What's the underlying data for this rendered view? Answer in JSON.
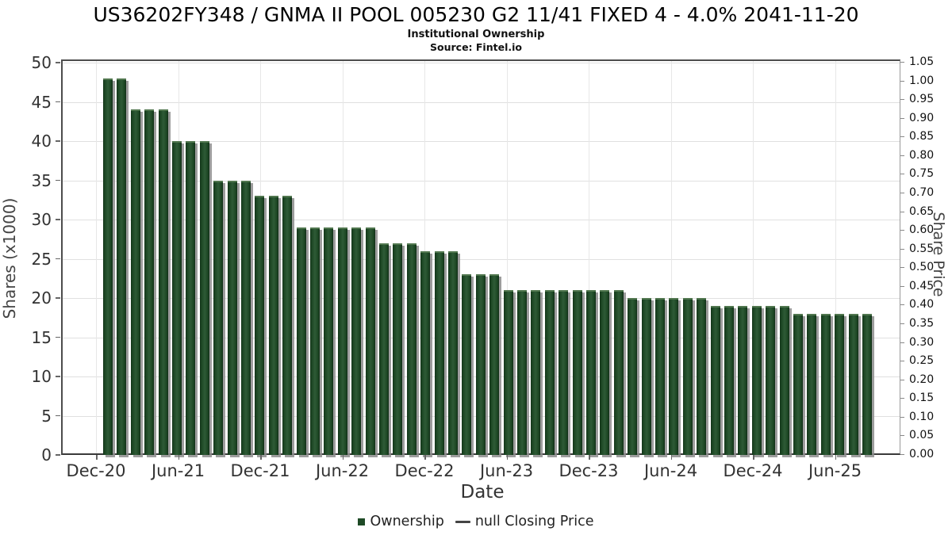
{
  "title": "US36202FY348 / GNMA II POOL 005230 G2 11/41 FIXED 4 - 4.0% 2041-11-20",
  "subtitle": "Institutional Ownership",
  "source": "Source: Fintel.io",
  "chart_data": {
    "type": "bar",
    "title": "US36202FY348 / GNMA II POOL 005230 G2 11/41 FIXED 4 - 4.0% 2041-11-20",
    "subtitle": "Institutional Ownership",
    "xlabel": "Date",
    "ylabel_left": "Shares (x1000)",
    "ylabel_right": "Share Price",
    "ylim_left": [
      0,
      50
    ],
    "ylim_right": [
      0,
      1.05
    ],
    "grid": true,
    "legend_position": "bottom",
    "x_tick_labels": [
      "Dec-20",
      "Jun-21",
      "Dec-21",
      "Jun-22",
      "Dec-22",
      "Jun-23",
      "Dec-23",
      "Jun-24",
      "Dec-24",
      "Jun-25"
    ],
    "y_left_tick_labels": [
      "0",
      "5",
      "10",
      "15",
      "20",
      "25",
      "30",
      "35",
      "40",
      "45",
      "50"
    ],
    "y_right_tick_labels": [
      "0.00",
      "0.05",
      "0.10",
      "0.15",
      "0.20",
      "0.25",
      "0.30",
      "0.35",
      "0.40",
      "0.45",
      "0.50",
      "0.55",
      "0.60",
      "0.65",
      "0.70",
      "0.75",
      "0.80",
      "0.85",
      "0.90",
      "0.95",
      "1.00",
      "1.05"
    ],
    "series": [
      {
        "name": "Ownership",
        "type": "bar",
        "color": "#1e4a26",
        "values": [
          48,
          48,
          44,
          44,
          44,
          40,
          40,
          40,
          35,
          35,
          35,
          33,
          33,
          33,
          29,
          29,
          29,
          29,
          29,
          29,
          27,
          27,
          27,
          26,
          26,
          26,
          23,
          23,
          23,
          21,
          21,
          21,
          21,
          21,
          21,
          21,
          21,
          21,
          20,
          20,
          20,
          20,
          20,
          20,
          19,
          19,
          19,
          19,
          19,
          19,
          18,
          18,
          18,
          18,
          18,
          18
        ]
      },
      {
        "name": "null Closing Price",
        "type": "line",
        "color": "#444444",
        "values": []
      }
    ]
  },
  "legend": {
    "items": [
      {
        "label": "Ownership",
        "marker": "square",
        "color": "#1e4a26"
      },
      {
        "label": "null Closing Price",
        "marker": "dash",
        "color": "#444444"
      }
    ]
  }
}
